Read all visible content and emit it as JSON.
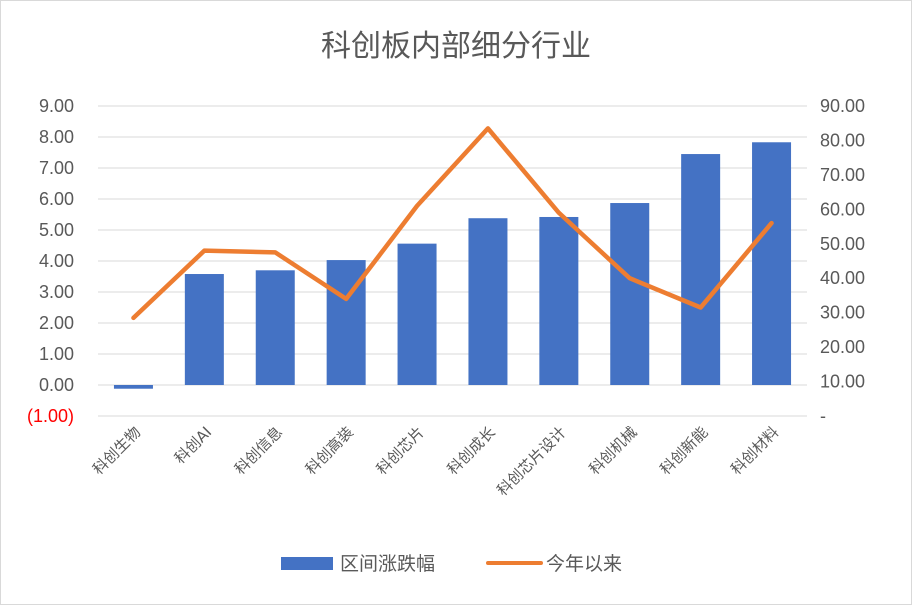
{
  "chart_data": {
    "type": "bar",
    "title": "科创板内部细分行业",
    "categories": [
      "科创生物",
      "科创AI",
      "科创信息",
      "科创高装",
      "科创芯片",
      "科创成长",
      "科创芯片设计",
      "科创机械",
      "科创新能",
      "科创材料"
    ],
    "series": [
      {
        "name": "区间涨跌幅",
        "type": "bar",
        "axis": "left",
        "color": "#4472c4",
        "values": [
          -0.12,
          3.58,
          3.7,
          4.03,
          4.56,
          5.38,
          5.42,
          5.87,
          7.45,
          7.83
        ]
      },
      {
        "name": "今年以来",
        "type": "line",
        "axis": "right",
        "color": "#ed7d31",
        "values": [
          28.5,
          48.0,
          47.5,
          34.0,
          61.0,
          83.5,
          59.0,
          40.0,
          31.5,
          56.0
        ]
      }
    ],
    "left_axis": {
      "ylim": [
        -1,
        9
      ],
      "ticks": [
        -1,
        0,
        1,
        2,
        3,
        4,
        5,
        6,
        7,
        8,
        9
      ],
      "tick_labels": [
        "(1.00)",
        "0.00",
        "1.00",
        "2.00",
        "3.00",
        "4.00",
        "5.00",
        "6.00",
        "7.00",
        "8.00",
        "9.00"
      ],
      "negative_label_color": "#ff0000"
    },
    "right_axis": {
      "ylim": [
        0,
        90
      ],
      "ticks": [
        0,
        10,
        20,
        30,
        40,
        50,
        60,
        70,
        80,
        90
      ],
      "tick_labels": [
        "-",
        "10.00",
        "20.00",
        "30.00",
        "40.00",
        "50.00",
        "60.00",
        "70.00",
        "80.00",
        "90.00"
      ]
    },
    "grid": true,
    "legend_position": "bottom"
  }
}
